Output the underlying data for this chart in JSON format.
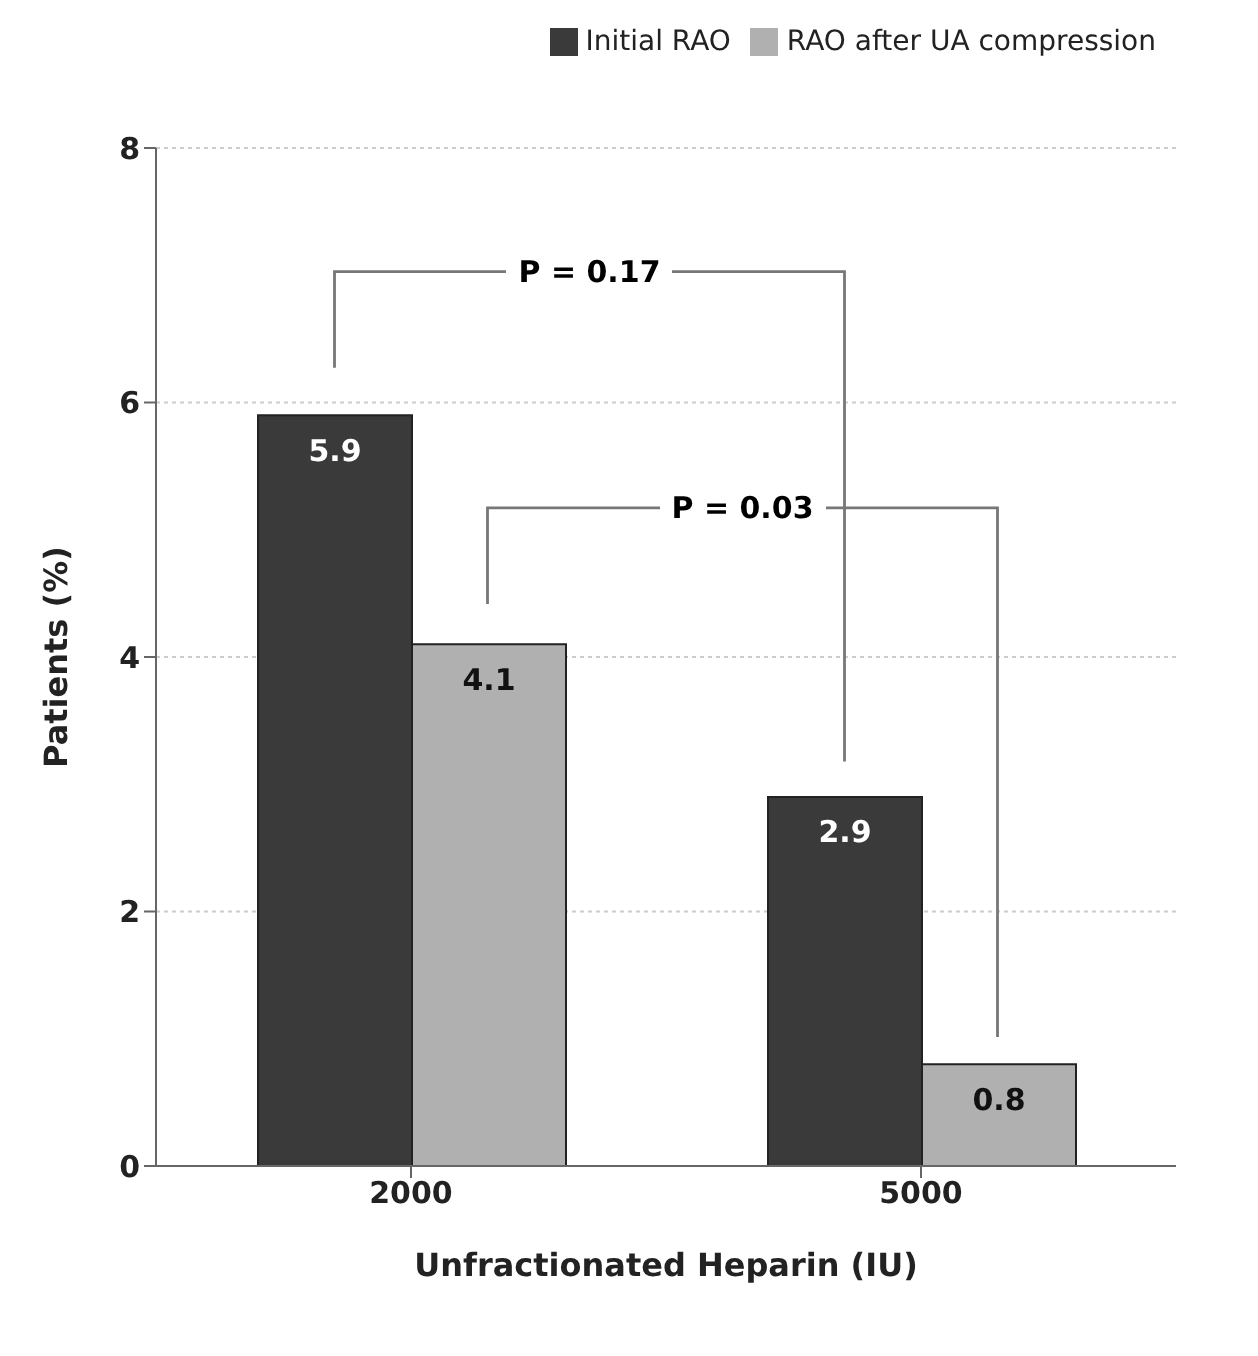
{
  "chart_data": {
    "type": "bar",
    "xlabel": "Unfractionated Heparin (IU)",
    "ylabel": "Patients (%)",
    "categories": [
      "2000",
      "5000"
    ],
    "series": [
      {
        "name": "Initial RAO",
        "color": "#3a3a3a",
        "values": [
          5.9,
          2.9
        ]
      },
      {
        "name": "RAO after UA compression",
        "color": "#b0b0b0",
        "values": [
          4.1,
          0.8
        ]
      }
    ],
    "ylim": [
      0,
      8
    ],
    "yticks": [
      0,
      2,
      4,
      6,
      8
    ],
    "grid": "y",
    "legend": "top",
    "data_labels": true,
    "annotations": [
      "P = 0.17",
      "P = 0.03"
    ]
  }
}
